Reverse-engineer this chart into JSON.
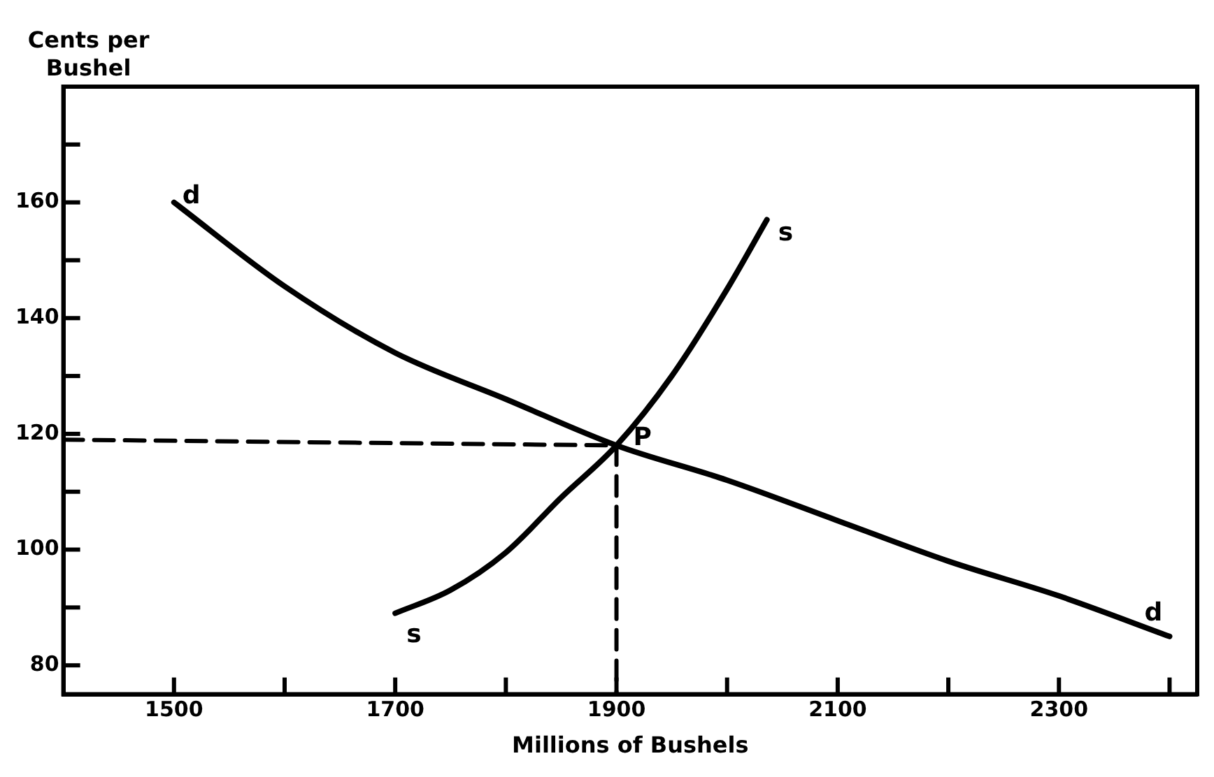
{
  "chart_data": {
    "type": "line",
    "xlabel": "Millions of Bushels",
    "ylabel": "Cents per Bushel",
    "series": [
      {
        "name": "d",
        "color": "#000000",
        "x": [
          1500,
          1600,
          1700,
          1800,
          1900,
          2000,
          2100,
          2200,
          2300,
          2400
        ],
        "values": [
          160,
          145.5,
          134,
          126,
          118,
          112,
          105,
          98,
          92,
          85
        ]
      },
      {
        "name": "s",
        "color": "#000000",
        "x": [
          1700,
          1750,
          1800,
          1850,
          1900,
          1950,
          2000,
          2036
        ],
        "values": [
          89,
          93,
          99.5,
          109,
          118,
          130,
          145,
          157
        ]
      },
      {
        "color": "#000000",
        "line_style": "dashed",
        "x": [
          1400,
          1900
        ],
        "values": [
          119,
          118
        ]
      },
      {
        "color": "#000000",
        "line_style": "dashed",
        "x": [
          1900,
          1900
        ],
        "values": [
          118,
          75
        ]
      }
    ],
    "annotations": [
      {
        "text": "P",
        "x": 1900,
        "y": 118
      }
    ],
    "xlim": [
      1400,
      2425
    ],
    "ylim": [
      75,
      180
    ],
    "xticks": [
      1500,
      {
        "value": 1600,
        "label": null
      },
      1700,
      {
        "value": 1800,
        "label": null
      },
      1900,
      {
        "value": 2000,
        "label": null
      },
      2100,
      {
        "value": 2200,
        "label": null
      },
      2300,
      {
        "value": 2400,
        "label": null
      }
    ],
    "yticks": [
      80,
      {
        "value": 90,
        "label": null
      },
      100,
      {
        "value": 110,
        "label": null
      },
      120,
      {
        "value": 130,
        "label": null
      },
      140,
      {
        "value": 150,
        "label": null
      },
      160,
      {
        "value": 170,
        "label": null
      }
    ],
    "grid": false,
    "legend": false,
    "marker": "none",
    "line_style": "solid"
  }
}
